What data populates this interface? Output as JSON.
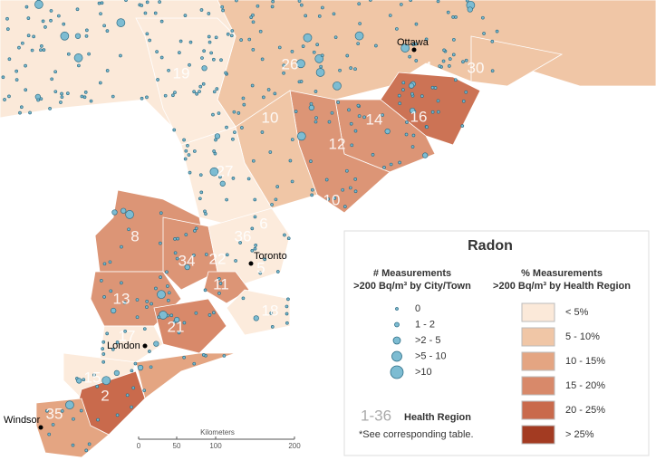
{
  "cities": [
    "Ottawa",
    "Toronto",
    "London",
    "Windsor"
  ],
  "regions": [
    "19",
    "26",
    "4",
    "30",
    "16",
    "14",
    "10",
    "12",
    "27",
    "10",
    "8",
    "34",
    "36",
    "6",
    "22",
    "5",
    "11",
    "13",
    "18",
    "17",
    "21",
    "15",
    "2",
    "35"
  ],
  "legend": {
    "title": "Radon",
    "count_header": [
      "# Measurements",
      ">200 Bq/m³ by City/Town"
    ],
    "count_classes": [
      "0",
      "1 - 2",
      ">2 - 5",
      ">5 - 10",
      ">10"
    ],
    "percent_header": [
      "% Measurements",
      ">200 Bq/m³ by Health Region"
    ],
    "percent_classes": [
      "< 5%",
      "5 - 10%",
      "10 - 15%",
      "15 - 20%",
      "20 - 25%",
      "> 25%"
    ],
    "region_key": "1-36",
    "region_key_label": "Health Region",
    "note": "*See corresponding table."
  },
  "scale": {
    "title": "Kilometers",
    "ticks": [
      "0",
      "50",
      "100",
      "200"
    ]
  }
}
